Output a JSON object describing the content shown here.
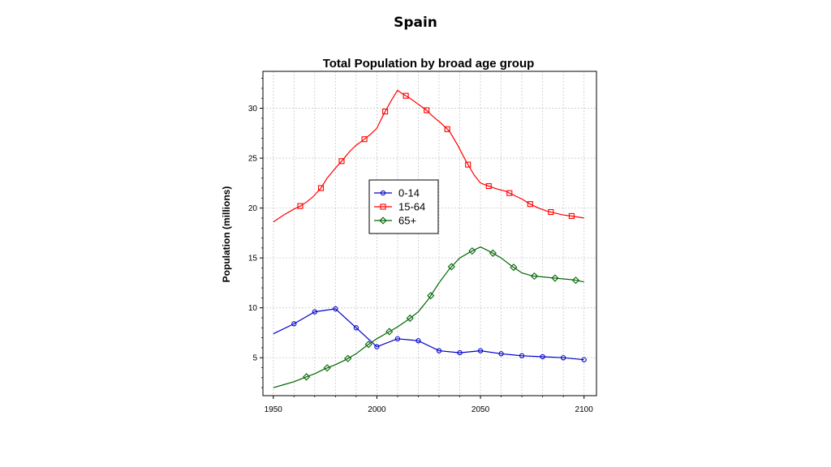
{
  "slide_title": "Spain",
  "chart_data": {
    "type": "line",
    "title": "Total Population by broad age group",
    "xlabel": "",
    "ylabel": "Population (millions)",
    "xlim": [
      1945,
      2106
    ],
    "ylim": [
      1.2,
      33.7
    ],
    "x_ticks": [
      1950,
      2000,
      2050,
      2100
    ],
    "y_ticks": [
      5,
      10,
      15,
      20,
      25,
      30
    ],
    "grid": true,
    "legend_position": "center",
    "series": [
      {
        "name": "0-14",
        "color": "#0000cc",
        "marker": "circle",
        "x": [
          1950,
          1960,
          1970,
          1980,
          1990,
          2000,
          2010,
          2020,
          2030,
          2040,
          2050,
          2060,
          2070,
          2080,
          2090,
          2100
        ],
        "y": [
          7.4,
          8.4,
          9.6,
          9.9,
          8.0,
          6.1,
          6.9,
          6.7,
          5.7,
          5.5,
          5.7,
          5.4,
          5.2,
          5.1,
          5.0,
          4.8
        ],
        "marker_x": [
          1960,
          1970,
          1980,
          1990,
          2000,
          2010,
          2020,
          2030,
          2040,
          2050,
          2060,
          2070,
          2080,
          2090,
          2100
        ]
      },
      {
        "name": "15-64",
        "color": "#ff0000",
        "marker": "square",
        "x": [
          1950,
          1955,
          1960,
          1963,
          1966,
          1969,
          1973,
          1976,
          1980,
          1983,
          1987,
          1990,
          1994,
          1997,
          2000,
          2003,
          2007,
          2010,
          2012,
          2016,
          2020,
          2024,
          2027,
          2031,
          2035,
          2039,
          2043,
          2047,
          2050,
          2054,
          2058,
          2062,
          2066,
          2070,
          2074,
          2078,
          2082,
          2086,
          2090,
          2094,
          2100
        ],
        "y": [
          18.6,
          19.3,
          19.9,
          20.2,
          20.6,
          21.1,
          22.0,
          23.0,
          24.0,
          24.7,
          25.7,
          26.3,
          26.9,
          27.4,
          28.0,
          29.3,
          30.8,
          31.8,
          31.5,
          31.0,
          30.4,
          29.8,
          29.2,
          28.5,
          27.7,
          26.3,
          24.7,
          23.3,
          22.5,
          22.2,
          21.9,
          21.7,
          21.3,
          20.9,
          20.4,
          20.0,
          19.7,
          19.5,
          19.3,
          19.2,
          19.0
        ],
        "marker_x": [
          1963,
          1973,
          1983,
          1994,
          2004,
          2014,
          2024,
          2034,
          2044,
          2054,
          2064,
          2074,
          2084,
          2094
        ]
      },
      {
        "name": "65+",
        "color": "#006600",
        "marker": "diamond",
        "x": [
          1950,
          1955,
          1960,
          1965,
          1970,
          1975,
          1980,
          1985,
          1990,
          1995,
          2000,
          2005,
          2010,
          2015,
          2020,
          2025,
          2030,
          2035,
          2040,
          2045,
          2050,
          2055,
          2060,
          2065,
          2070,
          2075,
          2080,
          2085,
          2090,
          2095,
          2100
        ],
        "y": [
          2.0,
          2.3,
          2.6,
          3.0,
          3.4,
          3.9,
          4.3,
          4.8,
          5.4,
          6.2,
          6.9,
          7.5,
          8.1,
          8.8,
          9.6,
          10.9,
          12.5,
          13.9,
          15.0,
          15.6,
          16.1,
          15.6,
          15.0,
          14.2,
          13.5,
          13.2,
          13.1,
          13.0,
          12.9,
          12.8,
          12.6
        ],
        "marker_x": [
          1966,
          1976,
          1986,
          1996,
          2006,
          2016,
          2026,
          2036,
          2046,
          2056,
          2066,
          2076,
          2086,
          2096
        ]
      }
    ]
  }
}
